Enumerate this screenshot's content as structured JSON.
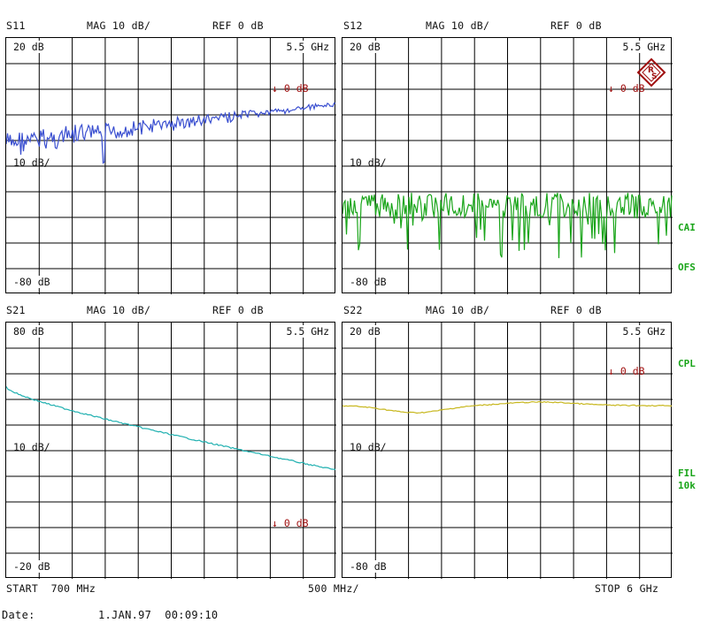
{
  "panels": [
    {
      "param": "S11",
      "mag": "MAG 10 dB/",
      "ref": "REF 0 dB",
      "top_label": "20 dB",
      "freq_label": "5.5 GHz",
      "ref_marker": "0 dB",
      "mid_label": "10 dB/",
      "bottom_label": "-80 dB",
      "trace_color": "#3a4fd0"
    },
    {
      "param": "S12",
      "mag": "MAG 10 dB/",
      "ref": "REF 0 dB",
      "top_label": "20 dB",
      "freq_label": "5.5 GHz",
      "ref_marker": "0 dB",
      "mid_label": "10 dB/",
      "bottom_label": "-80 dB",
      "trace_color": "#1aa51a"
    },
    {
      "param": "S21",
      "mag": "MAG 10 dB/",
      "ref": "REF 0 dB",
      "top_label": "80 dB",
      "freq_label": "5.5 GHz",
      "ref_marker": "0 dB",
      "mid_label": "10 dB/",
      "bottom_label": "-20 dB",
      "trace_color": "#20b0b0"
    },
    {
      "param": "S22",
      "mag": "MAG 10 dB/",
      "ref": "REF 0 dB",
      "top_label": "20 dB",
      "freq_label": "5.5 GHz",
      "ref_marker": "0 dB",
      "mid_label": "10 dB/",
      "bottom_label": "-80 dB",
      "trace_color": "#c8b820"
    }
  ],
  "side_labels": {
    "cai": "CAI",
    "ofs": "OFS",
    "cpl": "CPL",
    "fil": "FIL",
    "fil_bw": "10k"
  },
  "footer": {
    "start": "START  700 MHz",
    "span": "500 MHz/",
    "stop": "STOP 6 GHz"
  },
  "date": {
    "label": "Date:",
    "value": "1.JAN.97  00:09:10"
  },
  "colors": {
    "grid": "#000000",
    "marker": "#a01010",
    "logo": "#a01010",
    "side_text": "#1aa51a"
  },
  "logo_icon": "rohde-schwarz-logo-icon"
}
